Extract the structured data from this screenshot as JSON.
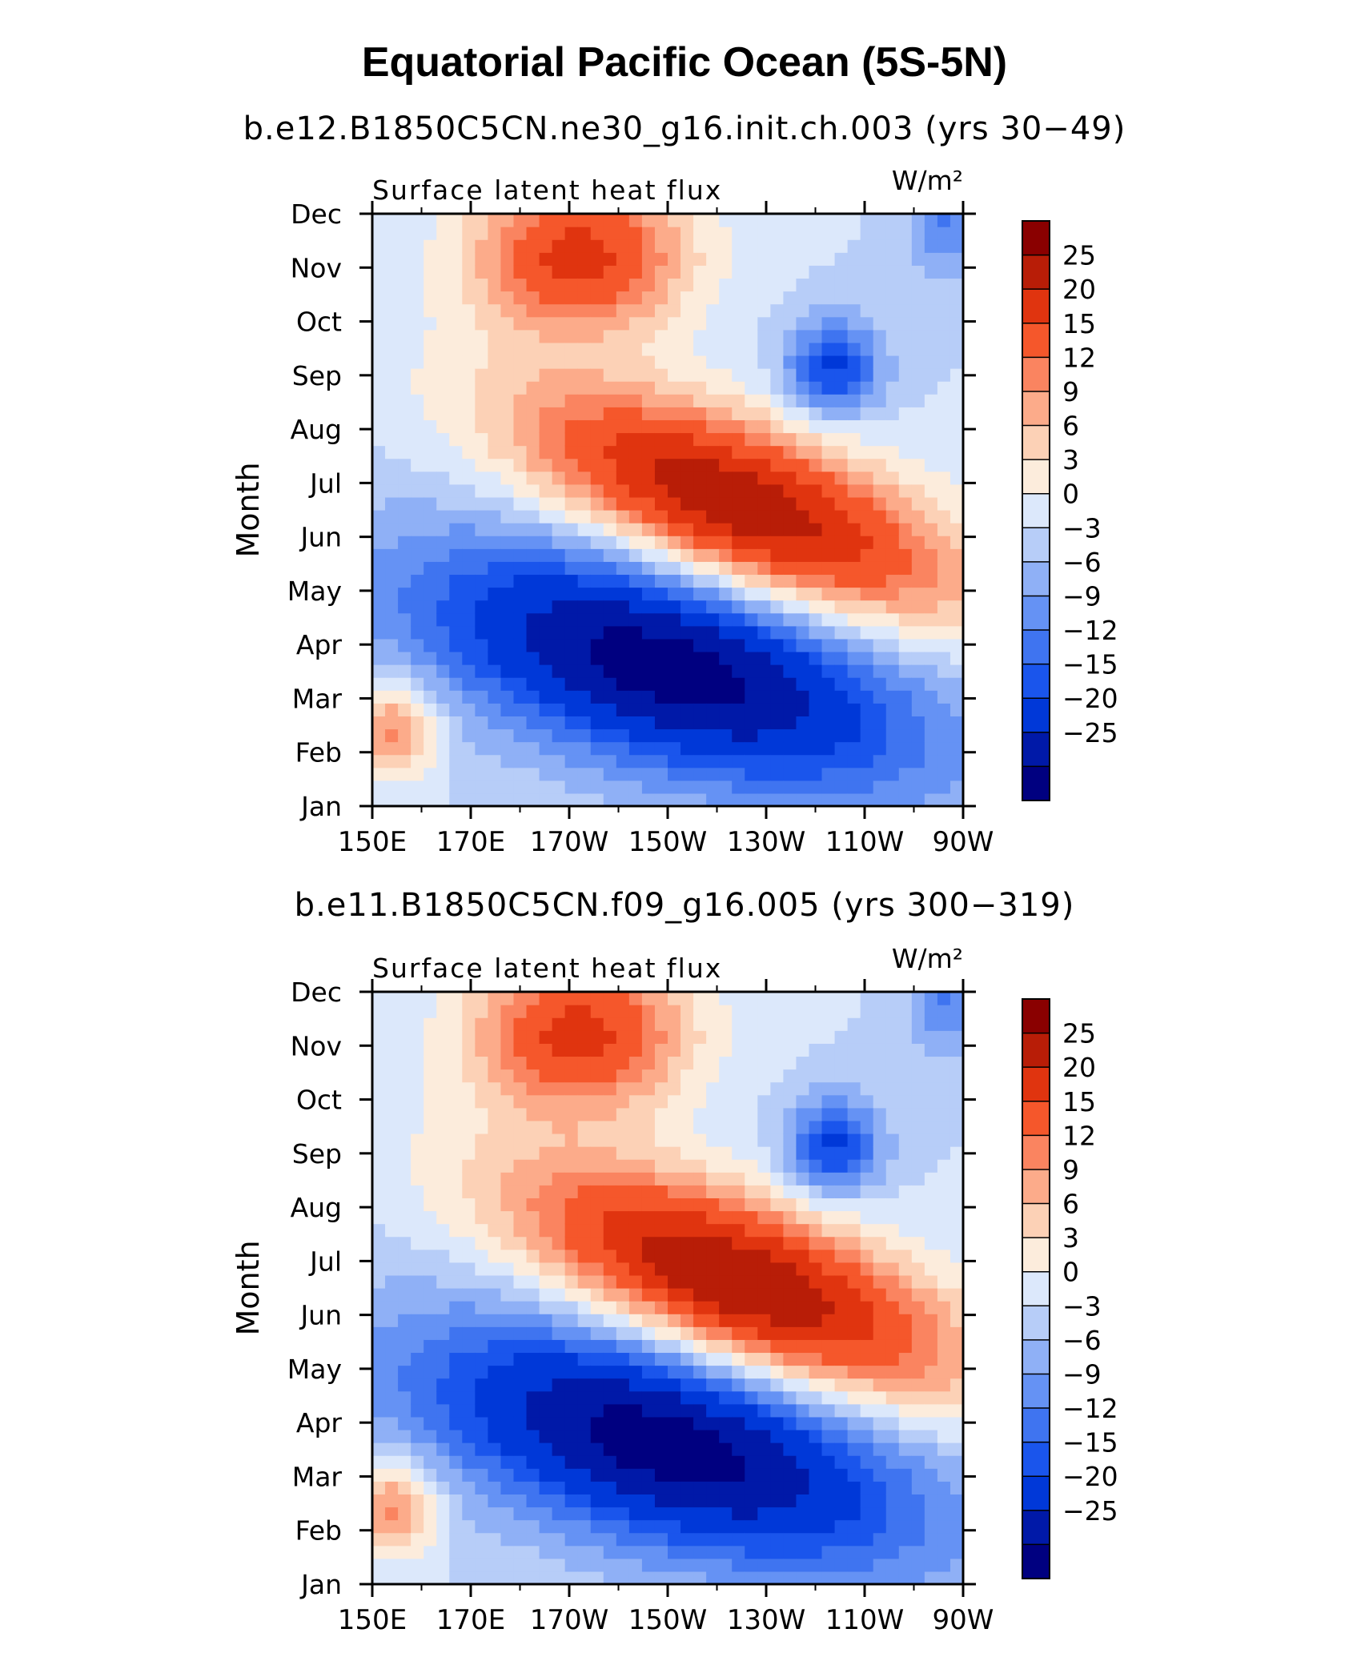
{
  "title": "Equatorial Pacific Ocean (5S-5N)",
  "colors": [
    "#000080",
    "#0019a8",
    "#0038d8",
    "#1a55ec",
    "#3f74f0",
    "#6592f4",
    "#8fb0f6",
    "#b7cdf8",
    "#dce8fb",
    "#fcecdc",
    "#fcd1b6",
    "#fcab8a",
    "#fa8460",
    "#f5572b",
    "#e0340f",
    "#b81d07",
    "#8a0000"
  ],
  "chart_data": [
    {
      "type": "heatmap",
      "case_title": "b.e12.B1850C5CN.ne30_g16.init.ch.003 (yrs 30−49)",
      "left_label": "Surface latent heat flux",
      "unit_label": "W/m²",
      "ylabel": "Month",
      "x_ticks": [
        "150E",
        "170E",
        "170W",
        "150W",
        "130W",
        "110W",
        "90W"
      ],
      "x_values": [
        150,
        170,
        190,
        210,
        230,
        250,
        270
      ],
      "y_ticks": [
        "Jan",
        "Feb",
        "Mar",
        "Apr",
        "May",
        "Jun",
        "Jul",
        "Aug",
        "Sep",
        "Oct",
        "Nov",
        "Dec"
      ],
      "colorbar_labels": [
        "25",
        "20",
        "15",
        "12",
        "9",
        "6",
        "3",
        "0",
        "−3",
        "−6",
        "−9",
        "−12",
        "−15",
        "−20",
        "−25"
      ],
      "levels": [
        -25,
        -20,
        -15,
        -12,
        -9,
        -6,
        -3,
        0,
        3,
        6,
        9,
        12,
        15,
        20,
        25
      ],
      "x_range": [
        "150E",
        "90W"
      ],
      "y_range": [
        "Jan",
        "Dec"
      ],
      "grid": false
    },
    {
      "type": "heatmap",
      "case_title": "b.e11.B1850C5CN.f09_g16.005 (yrs 300−319)",
      "left_label": "Surface latent heat flux",
      "unit_label": "W/m²",
      "ylabel": "Month",
      "x_ticks": [
        "150E",
        "170E",
        "170W",
        "150W",
        "130W",
        "110W",
        "90W"
      ],
      "x_values": [
        150,
        170,
        190,
        210,
        230,
        250,
        270
      ],
      "y_ticks": [
        "Jan",
        "Feb",
        "Mar",
        "Apr",
        "May",
        "Jun",
        "Jul",
        "Aug",
        "Sep",
        "Oct",
        "Nov",
        "Dec"
      ],
      "colorbar_labels": [
        "25",
        "20",
        "15",
        "12",
        "9",
        "6",
        "3",
        "0",
        "−3",
        "−6",
        "−9",
        "−12",
        "−15",
        "−20",
        "−25"
      ],
      "levels": [
        -25,
        -20,
        -15,
        -12,
        -9,
        -6,
        -3,
        0,
        3,
        6,
        9,
        12,
        15,
        20,
        25
      ],
      "x_range": [
        "150E",
        "90W"
      ],
      "y_range": [
        "Jan",
        "Dec"
      ],
      "grid": false
    }
  ]
}
